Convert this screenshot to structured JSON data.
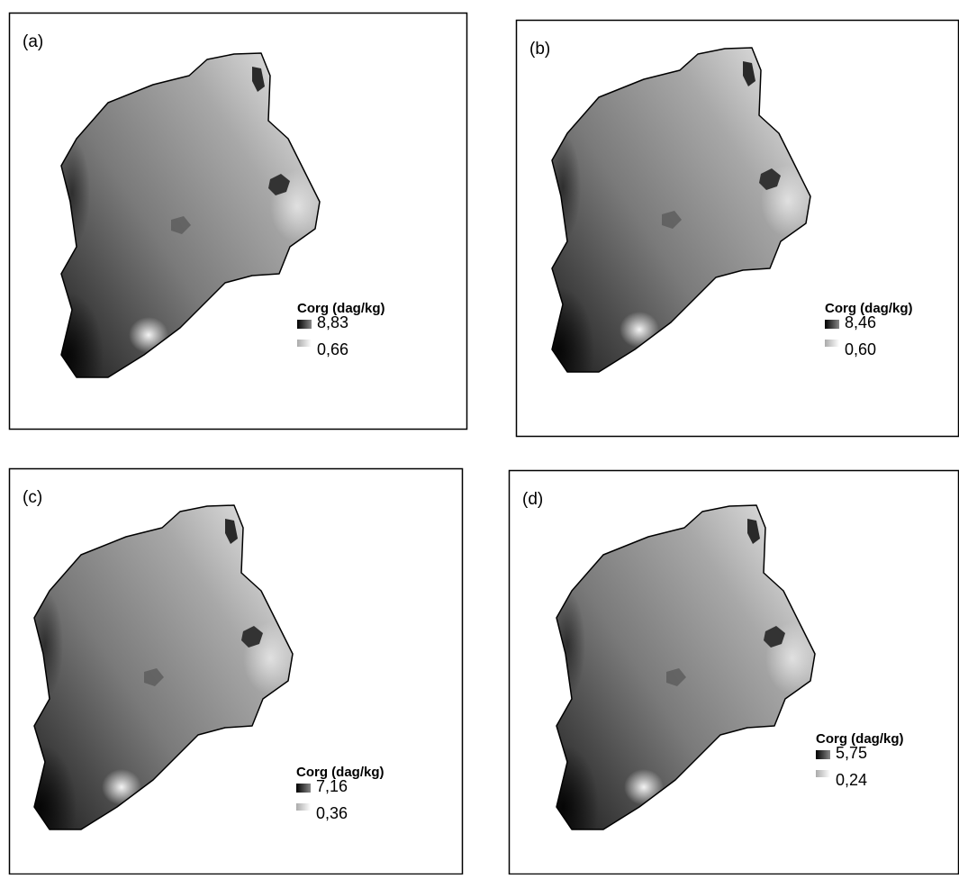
{
  "panels": [
    {
      "label": "(a)",
      "legend_title": "Corg (dag/kg)",
      "max": "8,83",
      "min": "0,66"
    },
    {
      "label": "(b)",
      "legend_title": "Corg (dag/kg)",
      "max": "8,46",
      "min": "0,60"
    },
    {
      "label": "(c)",
      "legend_title": "Corg (dag/kg)",
      "max": "7,16",
      "min": "0,36"
    },
    {
      "label": "(d)",
      "legend_title": "Corg (dag/kg)",
      "max": "5,75",
      "min": "0,24"
    }
  ]
}
